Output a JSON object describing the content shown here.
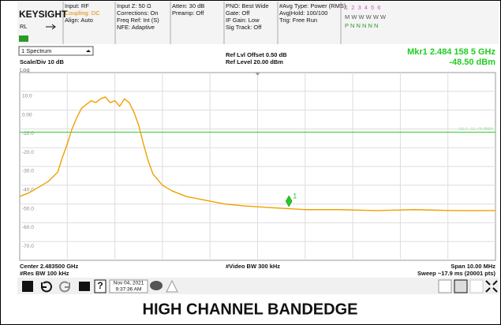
{
  "ui": {
    "brand": "KEYSIGHT",
    "rl": "RL",
    "input": [
      "Input: RF",
      "Coupling: DC",
      "Align: Auto"
    ],
    "input_z": [
      "Input Z: 50 Ω",
      "Corrections: On",
      "Freq Ref: Int (S)",
      "NFE: Adaptive"
    ],
    "atten": [
      "Atten: 30 dB",
      "Preamp: Off"
    ],
    "pno": [
      "PNO: Best Wide",
      "Gate: Off",
      "IF Gain: Low",
      "Sig Track: Off"
    ],
    "avg": [
      "#Avg Type: Power (RMS)",
      "Avg|Hold: 100/100",
      "Trig: Free Run"
    ],
    "trace_nums": "1 2 3 4 5 6",
    "trace_modes": "M W W W W W",
    "trace_dets": "P N N N N N",
    "window": "1 Spectrum",
    "scale": "Scale/Div 10 dB",
    "log": "Log",
    "ref_offset": "Ref Lvl Offset 0.50 dB",
    "ref_level": "Ref Level 20.00 dBm",
    "marker_freq": "Mkr1  2.484 158 5 GHz",
    "marker_amp": "-48.50 dBm",
    "center": "Center 2.483500 GHz",
    "rbw": "#Res BW 100 kHz",
    "vbw": "#Video BW 300 kHz",
    "span": "Span 10.00 MHz",
    "sweep": "Sweep ~17.9 ms (20001 pts)",
    "date": "Nov 04, 2021",
    "time": "9:37:36 AM",
    "caption": "HIGH CHANNEL BANDEDGE"
  },
  "chart_data": {
    "type": "line",
    "x": [
      2.4785,
      2.4787,
      2.4789,
      2.4791,
      2.4793,
      2.4794,
      2.4795,
      2.4796,
      2.4797,
      2.4798,
      2.4799,
      2.48,
      2.4801,
      2.4802,
      2.4803,
      2.4804,
      2.4805,
      2.4806,
      2.4807,
      2.4808,
      2.4809,
      2.481,
      2.4811,
      2.4812,
      2.4813,
      2.4815,
      2.4817,
      2.482,
      2.4824,
      2.4828,
      2.4832,
      2.4838,
      2.4845,
      2.4852,
      2.486,
      2.4868,
      2.4876,
      2.4885
    ],
    "values": [
      -46,
      -44,
      -41,
      -38,
      -33,
      -25,
      -18,
      -10,
      -4,
      1,
      3,
      5,
      4,
      6,
      7,
      4,
      5,
      2,
      6,
      4,
      -1,
      -8,
      -18,
      -27,
      -34,
      -40,
      -43,
      -46,
      -48,
      -50,
      -51,
      -52,
      -53,
      -53,
      -53.5,
      -53,
      -53.5,
      -53.5
    ],
    "color": "#f0a000",
    "xlim": [
      2.4785,
      2.4885
    ],
    "ylim": [
      -80,
      20
    ],
    "yticks": [
      {
        "value": 10,
        "label": "10.0"
      },
      {
        "value": 0,
        "label": "0.00"
      },
      {
        "value": -10,
        "label": "-10.0"
      },
      {
        "value": -20,
        "label": "-20.0"
      },
      {
        "value": -30,
        "label": "-30.0"
      },
      {
        "value": -40,
        "label": "-40.0"
      },
      {
        "value": -50,
        "label": "-50.0"
      },
      {
        "value": -60,
        "label": "-60.0"
      },
      {
        "value": -70,
        "label": "-70.0"
      }
    ],
    "grid": true,
    "display_line": {
      "value": -11.79,
      "label": "DL1 -11.79 dBm",
      "color": "#22cc22"
    },
    "marker": {
      "x": 2.4841585,
      "y": -48.5,
      "label": "1",
      "color": "#22cc22"
    }
  }
}
